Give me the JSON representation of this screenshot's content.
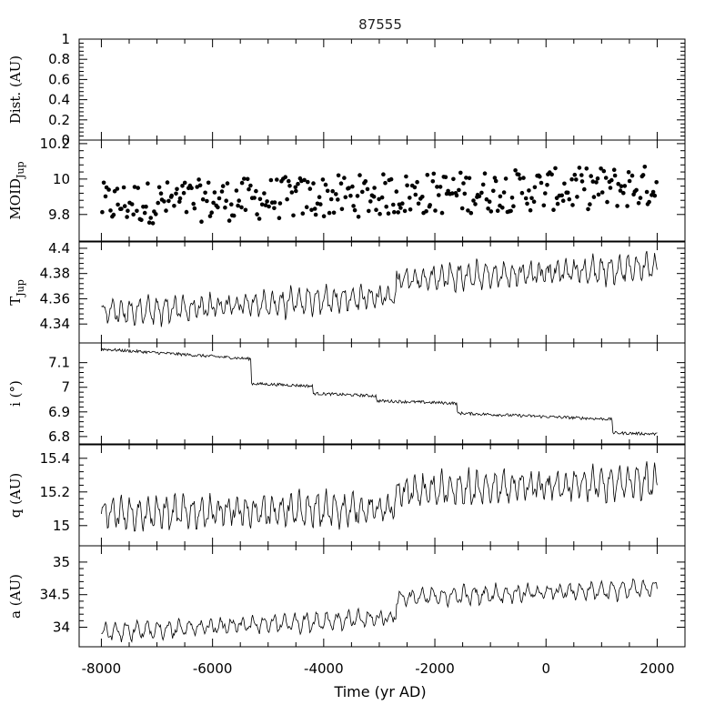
{
  "chart_data": {
    "type": "line",
    "title": "87555",
    "x_label": "Time (yr AD)",
    "xlim": [
      -8400,
      2500
    ],
    "x_ticks": [
      -8000,
      -6000,
      -4000,
      -2000,
      0,
      2000
    ],
    "x_tick_labels": [
      "-8000",
      "-6000",
      "-4000",
      "-2000",
      "0",
      "2000"
    ],
    "panels": [
      {
        "id": "dist",
        "ylabel": "Dist. (AU)",
        "ylabel_sub": "",
        "type": "empty",
        "ylim": [
          0,
          1
        ],
        "yticks": [
          0,
          0.2,
          0.4,
          0.6,
          0.8,
          1
        ],
        "ytick_labels": [
          "0",
          "0.2",
          "0.4",
          "0.6",
          "0.8",
          "1"
        ]
      },
      {
        "id": "moid",
        "ylabel": "MOID",
        "ylabel_sub": "Jup",
        "type": "scatter",
        "ylim": [
          9.65,
          10.22
        ],
        "yticks": [
          9.8,
          10,
          10.2
        ],
        "ytick_labels": [
          "9.8",
          "10",
          "10.2"
        ],
        "x_range": [
          -8000,
          2000
        ],
        "trend": [
          9.86,
          9.96
        ],
        "n": 340,
        "amplitude": 0.12
      },
      {
        "id": "tjup",
        "ylabel": "T",
        "ylabel_sub": "Jup",
        "type": "line",
        "ylim": [
          4.325,
          4.405
        ],
        "yticks": [
          4.34,
          4.36,
          4.38,
          4.4
        ],
        "ytick_labels": [
          "4.34",
          "4.36",
          "4.38",
          "4.4"
        ],
        "x_range": [
          -8000,
          2000
        ],
        "segments": [
          {
            "x0": -8000,
            "x1": -2700,
            "y0": 4.349,
            "y1": 4.362
          },
          {
            "x0": -2700,
            "x1": 2000,
            "y0": 4.375,
            "y1": 4.385
          }
        ],
        "period": 160,
        "amplitude": 0.009
      },
      {
        "id": "incl",
        "ylabel": "i (°)",
        "ylabel_sub": "",
        "type": "line",
        "ylim": [
          6.77,
          7.18
        ],
        "yticks": [
          6.8,
          6.9,
          7,
          7.1
        ],
        "ytick_labels": [
          "6.8",
          "6.9",
          "7",
          "7.1"
        ],
        "x_range": [
          -8000,
          2000
        ],
        "steps": [
          {
            "x0": -8000,
            "x1": -5300,
            "y0": 7.155,
            "y1": 7.115
          },
          {
            "x0": -5300,
            "x1": -4200,
            "y0": 7.015,
            "y1": 7.005
          },
          {
            "x0": -4200,
            "x1": -3050,
            "y0": 6.975,
            "y1": 6.965
          },
          {
            "x0": -3050,
            "x1": -1600,
            "y0": 6.945,
            "y1": 6.935
          },
          {
            "x0": -1600,
            "x1": 1200,
            "y0": 6.895,
            "y1": 6.87
          },
          {
            "x0": 1200,
            "x1": 2000,
            "y0": 6.815,
            "y1": 6.81
          }
        ],
        "amplitude": 0.006
      },
      {
        "id": "q",
        "ylabel": "q (AU)",
        "ylabel_sub": "",
        "type": "line",
        "ylim": [
          14.88,
          15.48
        ],
        "yticks": [
          15,
          15.2,
          15.4
        ],
        "ytick_labels": [
          "15",
          "15.2",
          "15.4"
        ],
        "x_range": [
          -8000,
          2000
        ],
        "segments": [
          {
            "x0": -8000,
            "x1": -2700,
            "y0": 15.07,
            "y1": 15.1
          },
          {
            "x0": -2700,
            "x1": 2000,
            "y0": 15.2,
            "y1": 15.26
          }
        ],
        "period": 160,
        "amplitude": 0.085
      },
      {
        "id": "a",
        "ylabel": "a (AU)",
        "ylabel_sub": "",
        "type": "line",
        "ylim": [
          33.7,
          35.25
        ],
        "yticks": [
          34,
          34.5,
          35
        ],
        "ytick_labels": [
          "34",
          "34.5",
          "35"
        ],
        "x_range": [
          -8000,
          2000
        ],
        "segments": [
          {
            "x0": -8000,
            "x1": -2700,
            "y0": 33.92,
            "y1": 34.15
          },
          {
            "x0": -2700,
            "x1": 2000,
            "y0": 34.45,
            "y1": 34.6
          }
        ],
        "period": 190,
        "amplitude": 0.12
      }
    ]
  }
}
